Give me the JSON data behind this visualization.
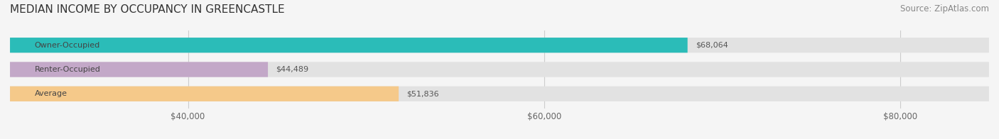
{
  "title": "MEDIAN INCOME BY OCCUPANCY IN GREENCASTLE",
  "source": "Source: ZipAtlas.com",
  "categories": [
    "Owner-Occupied",
    "Renter-Occupied",
    "Average"
  ],
  "values": [
    68064,
    44489,
    51836
  ],
  "bar_colors": [
    "#2bbcb8",
    "#c3a8c8",
    "#f5c98a"
  ],
  "bar_labels": [
    "$68,064",
    "$44,489",
    "$51,836"
  ],
  "xlim": [
    30000,
    85000
  ],
  "xticks": [
    40000,
    60000,
    80000
  ],
  "xtick_labels": [
    "$40,000",
    "$60,000",
    "$80,000"
  ],
  "background_color": "#f5f5f5",
  "bar_bg_color": "#e2e2e2",
  "title_fontsize": 11,
  "source_fontsize": 8.5,
  "label_fontsize": 8,
  "tick_fontsize": 8.5
}
